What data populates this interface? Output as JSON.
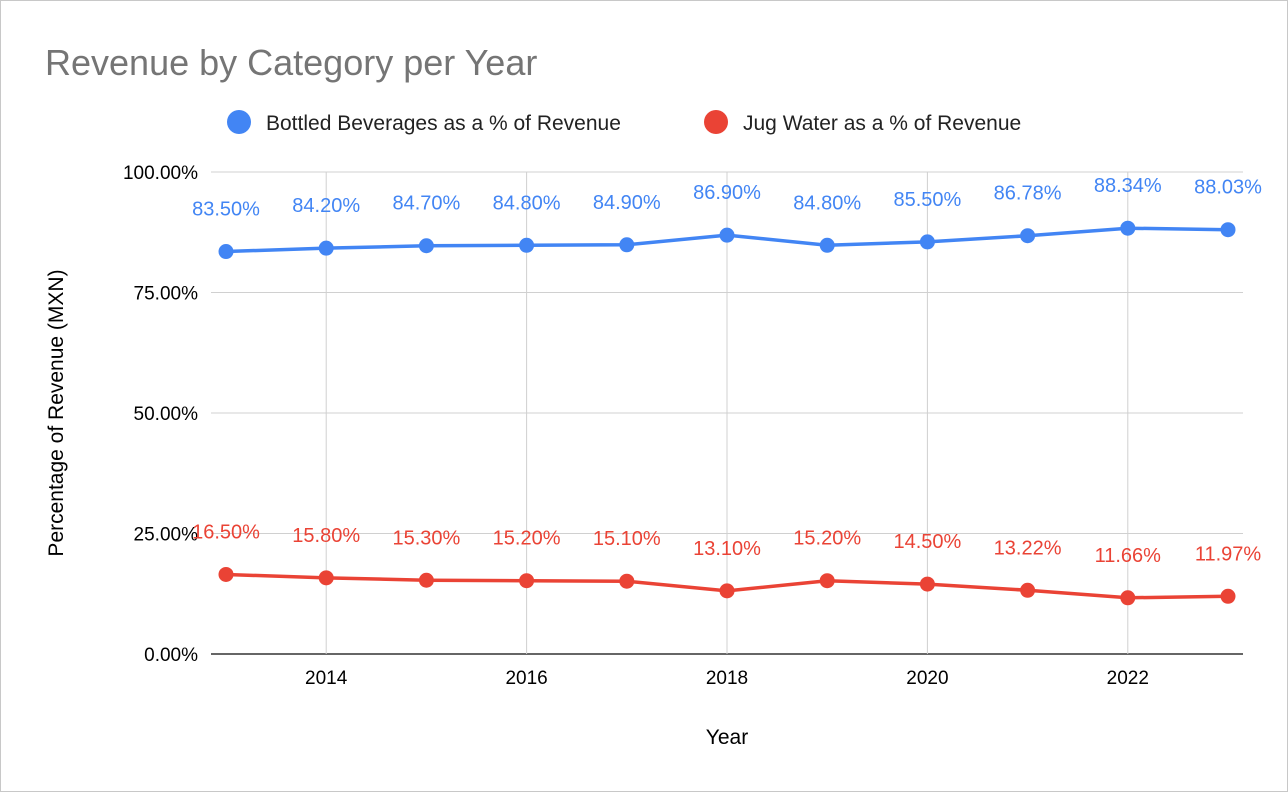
{
  "chart_data": {
    "type": "line",
    "title": "Revenue by Category per Year",
    "xlabel": "Year",
    "ylabel": "Percentage of Revenue (MXN)",
    "x": [
      2013,
      2014,
      2015,
      2016,
      2017,
      2018,
      2019,
      2020,
      2021,
      2022,
      2023
    ],
    "x_ticks": [
      "2014",
      "2016",
      "2018",
      "2020",
      "2022"
    ],
    "x_tick_values": [
      2014,
      2016,
      2018,
      2020,
      2022
    ],
    "y_ticks": [
      "0.00%",
      "25.00%",
      "50.00%",
      "75.00%",
      "100.00%"
    ],
    "y_tick_values": [
      0,
      25,
      50,
      75,
      100
    ],
    "ylim": [
      0,
      100
    ],
    "xlim": [
      2013,
      2023
    ],
    "grid": true,
    "legend_position": "top",
    "series": [
      {
        "name": "Bottled Beverages as a % of Revenue",
        "color": "#4285f4",
        "values": [
          83.5,
          84.2,
          84.7,
          84.8,
          84.9,
          86.9,
          84.8,
          85.5,
          86.78,
          88.34,
          88.03
        ],
        "labels": [
          "83.50%",
          "84.20%",
          "84.70%",
          "84.80%",
          "84.90%",
          "86.90%",
          "84.80%",
          "85.50%",
          "86.78%",
          "88.34%",
          "88.03%"
        ]
      },
      {
        "name": "Jug Water as a % of Revenue",
        "color": "#ea4335",
        "values": [
          16.5,
          15.8,
          15.3,
          15.2,
          15.1,
          13.1,
          15.2,
          14.5,
          13.22,
          11.66,
          11.97
        ],
        "labels": [
          "16.50%",
          "15.80%",
          "15.30%",
          "15.20%",
          "15.10%",
          "13.10%",
          "15.20%",
          "14.50%",
          "13.22%",
          "11.66%",
          "11.97%"
        ]
      }
    ]
  }
}
